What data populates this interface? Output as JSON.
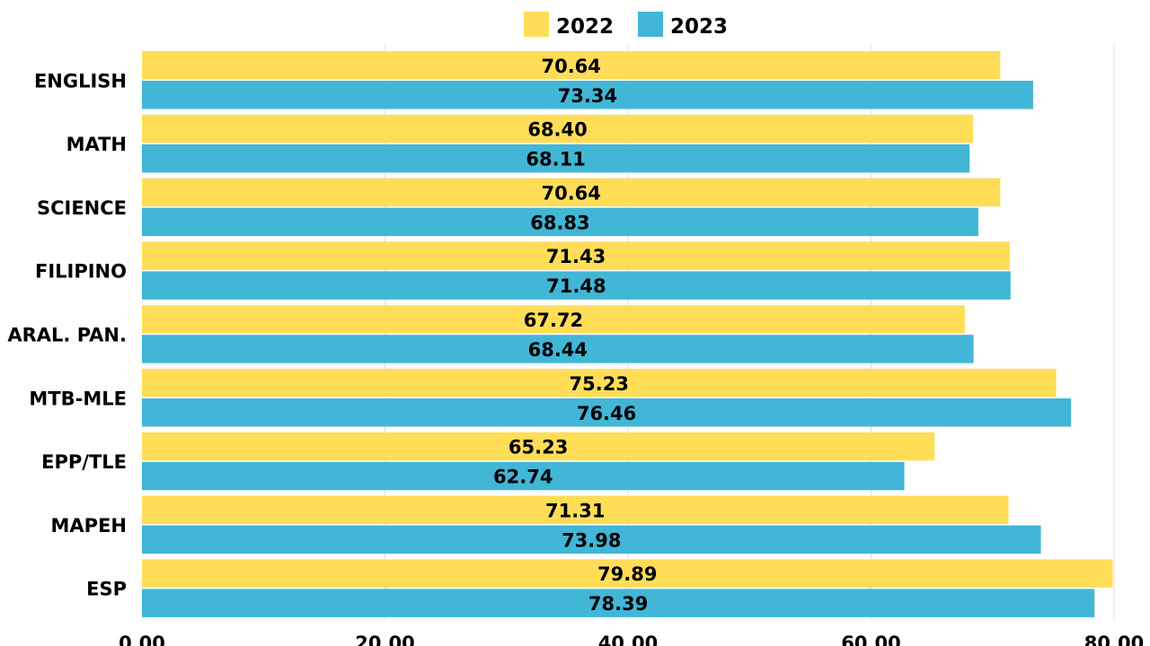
{
  "chart_data": {
    "type": "bar",
    "orientation": "horizontal",
    "categories": [
      "ENGLISH",
      "MATH",
      "SCIENCE",
      "FILIPINO",
      "ARAL. PAN.",
      "MTB-MLE",
      "EPP/TLE",
      "MAPEH",
      "ESP"
    ],
    "series": [
      {
        "name": "2022",
        "values": [
          70.64,
          68.4,
          70.64,
          71.43,
          67.72,
          75.23,
          65.23,
          71.31,
          79.89
        ],
        "labels": [
          "70.64",
          "68.40",
          "70.64",
          "71.43",
          "67.72",
          "75.23",
          "65.23",
          "71.31",
          "79.89"
        ]
      },
      {
        "name": "2023",
        "values": [
          73.34,
          68.11,
          68.83,
          71.48,
          68.44,
          76.46,
          62.74,
          73.98,
          78.39
        ],
        "labels": [
          "73.34",
          "68.11",
          "68.83",
          "71.48",
          "68.44",
          "76.46",
          "62.74",
          "73.98",
          "78.39"
        ]
      }
    ],
    "xlim": [
      0,
      80
    ],
    "ticks": [
      0,
      20,
      40,
      60,
      80
    ],
    "tick_labels": [
      "0.00",
      "20.00",
      "40.00",
      "60.00",
      "80.00"
    ],
    "grid": true,
    "legend": "top-center",
    "title": "",
    "xlabel": "",
    "ylabel": ""
  },
  "colors": {
    "series_2022": "#FFDD57",
    "series_2023": "#41B6D6",
    "grid": "#DDDDDD",
    "text": "#000000"
  }
}
